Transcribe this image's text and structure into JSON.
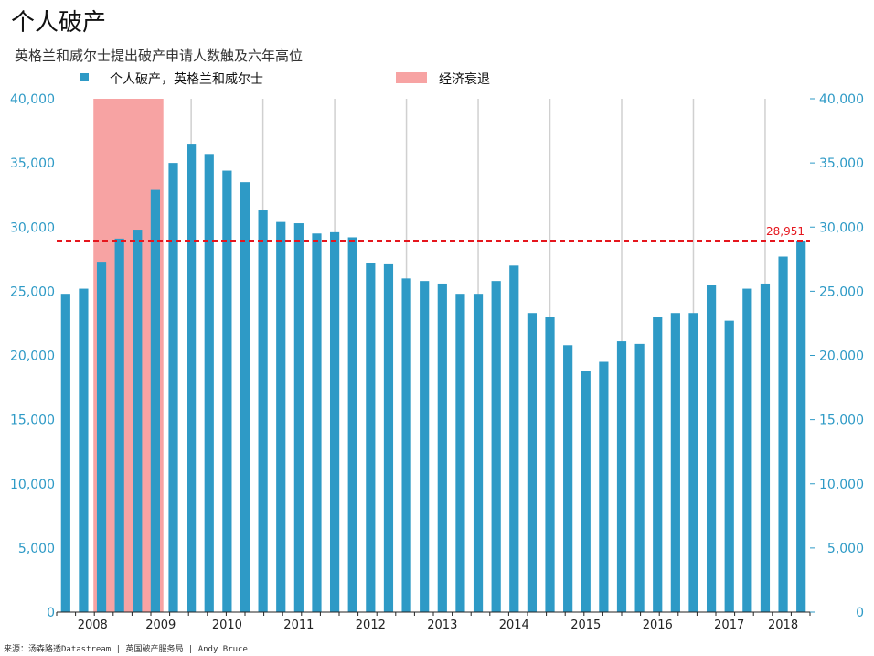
{
  "title": "个人破产",
  "subtitle": "英格兰和威尔士提出破产申请人数触及六年高位",
  "source": "来源：汤森路透Datastream | 英国破产服务局 | Andy Bruce",
  "colors": {
    "bar": "#2e9ac6",
    "recession": "#f7a3a3",
    "reference_line": "#e5161d",
    "axis_text": "#2e9ac6",
    "grid_line": "#d0d0d0"
  },
  "chart_data": {
    "type": "bar",
    "title": "个人破产",
    "subtitle": "英格兰和威尔士提出破产申请人数触及六年高位",
    "series": [
      {
        "name": "个人破产，英格兰和威尔士",
        "values": [
          24800,
          25200,
          27300,
          29100,
          29800,
          32900,
          35000,
          36500,
          35700,
          34400,
          33500,
          31300,
          30400,
          30300,
          29500,
          29600,
          29200,
          27200,
          27100,
          26000,
          25800,
          25600,
          24800,
          24800,
          25800,
          27000,
          23300,
          23000,
          20800,
          18800,
          19500,
          21100,
          20900,
          23000,
          23300,
          23300,
          25500,
          22700,
          25200,
          25600,
          27700,
          28951
        ]
      }
    ],
    "shaded_regions": [
      {
        "name": "经济衰退",
        "start_index": 2,
        "end_index": 5
      }
    ],
    "reference_line": {
      "value": 28951,
      "label": "28,951",
      "style": "dashed"
    },
    "x_tick_labels": [
      "2008",
      "2009",
      "2010",
      "2011",
      "2012",
      "2013",
      "2014",
      "2015",
      "2016",
      "2017",
      "2018"
    ],
    "x_tick_label_positions": [
      1.5,
      5.3,
      9.0,
      13.0,
      17.0,
      21.0,
      25.0,
      29.0,
      33.0,
      37.0,
      40.0
    ],
    "year_marker_indices": [
      7.0,
      11.0,
      15.0,
      19.0,
      23.0,
      27.0,
      31.0,
      35.0,
      39.0
    ],
    "y_ticks": [
      0,
      5000,
      10000,
      15000,
      20000,
      25000,
      30000,
      35000,
      40000
    ],
    "y_tick_labels": [
      "0",
      "5,000",
      "10,000",
      "15,000",
      "20,000",
      "25,000",
      "30,000",
      "35,000",
      "40,000"
    ],
    "ylim": [
      0,
      40000
    ],
    "xlabel": "",
    "ylabel": "",
    "legend": {
      "position": "top-left",
      "entries": [
        {
          "label": "个人破产，英格兰和威尔士",
          "color": "#2e9ac6"
        },
        {
          "label": "经济衰退",
          "color": "#f7a3a3"
        }
      ]
    },
    "grid": false
  }
}
